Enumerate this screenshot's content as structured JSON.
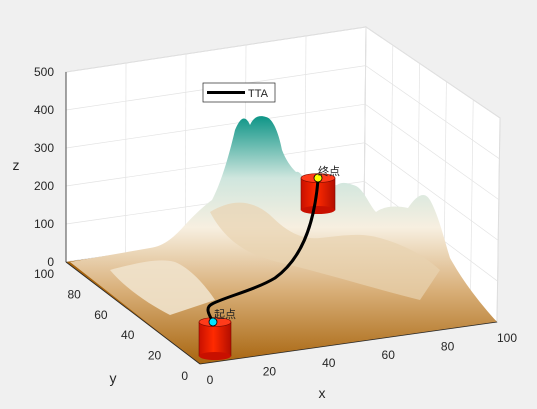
{
  "chart_data": {
    "type": "surface",
    "xlabel": "x",
    "ylabel": "y",
    "zlabel": "z",
    "x_ticks": [
      0,
      20,
      40,
      60,
      80,
      100
    ],
    "y_ticks": [
      0,
      20,
      40,
      60,
      80,
      100
    ],
    "z_ticks": [
      0,
      100,
      200,
      300,
      400,
      500
    ],
    "xlim": [
      0,
      100
    ],
    "ylim": [
      0,
      100
    ],
    "zlim": [
      0,
      500
    ],
    "grid": true,
    "legend": {
      "position": "top-center",
      "entries": [
        "TTA"
      ]
    },
    "start_label": "起点",
    "end_label": "终点",
    "start_point": [
      10,
      15,
      0
    ],
    "end_point": [
      50,
      60,
      150
    ],
    "colors": {
      "background": "#f0f0f0",
      "path": "#000000",
      "obstacle": "#ff1a00",
      "start_marker": "#00e5ff",
      "end_marker": "#ffff00",
      "terrain_low": "#a8650f",
      "terrain_mid": "#f7efe0",
      "terrain_high": "#0e9587"
    }
  }
}
